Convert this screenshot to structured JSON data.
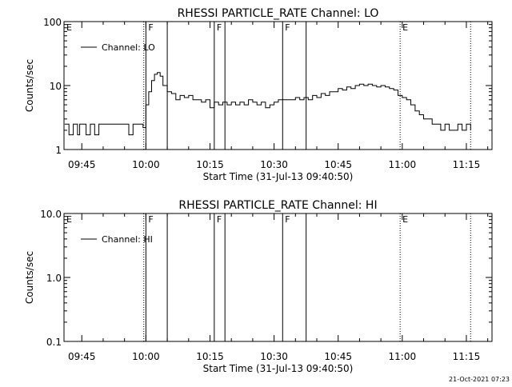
{
  "footer": {
    "timestamp": "21-Oct-2021 07:23"
  },
  "chart_data": [
    {
      "type": "line",
      "title": "RHESSI PARTICLE_RATE Channel: LO",
      "xlabel": "Start Time (31-Jul-13 09:40:50)",
      "ylabel": "Counts/sec",
      "yscale": "log",
      "ylim": [
        1,
        100
      ],
      "xlim": [
        "09:40:50",
        "11:21:00"
      ],
      "yticks": [
        "1",
        "10",
        "100"
      ],
      "xticks": [
        "09:45",
        "10:00",
        "10:15",
        "10:30",
        "10:45",
        "11:00",
        "11:15"
      ],
      "legend": {
        "label": "Channel: LO",
        "position": "top-left"
      },
      "markers": [
        {
          "time": "09:40:50",
          "label": "E",
          "style": "none"
        },
        {
          "time": "09:59:30",
          "label": "",
          "style": "dotted"
        },
        {
          "time": "10:00:00",
          "label": "F",
          "style": "solid"
        },
        {
          "time": "10:05:00",
          "label": "",
          "style": "solid"
        },
        {
          "time": "10:16:00",
          "label": "F",
          "style": "solid"
        },
        {
          "time": "10:18:30",
          "label": "",
          "style": "solid"
        },
        {
          "time": "10:32:00",
          "label": "F",
          "style": "solid"
        },
        {
          "time": "10:37:30",
          "label": "",
          "style": "solid"
        },
        {
          "time": "10:59:30",
          "label": "E",
          "style": "dotted"
        },
        {
          "time": "11:16:00",
          "label": "",
          "style": "dotted"
        }
      ],
      "series": [
        {
          "x": [
            "09:41:00",
            "09:42:00",
            "09:43:00",
            "09:44:00",
            "09:44:30",
            "09:45:00",
            "09:46:00",
            "09:47:00",
            "09:48:00",
            "09:49:00",
            "09:50:00",
            "09:51:00",
            "09:52:00",
            "09:53:00",
            "09:54:00",
            "09:55:00",
            "09:56:00",
            "09:57:00",
            "09:58:00",
            "09:58:40",
            "09:59:20",
            "10:00:00",
            "10:00:40",
            "10:01:20",
            "10:02:00",
            "10:02:40",
            "10:03:20",
            "10:04:00",
            "10:05:00",
            "10:06:00",
            "10:07:00",
            "10:08:00",
            "10:09:00",
            "10:10:00",
            "10:11:00",
            "10:12:00",
            "10:13:00",
            "10:14:00",
            "10:15:00",
            "10:16:00",
            "10:17:00",
            "10:18:00",
            "10:19:00",
            "10:20:00",
            "10:21:00",
            "10:22:00",
            "10:23:00",
            "10:24:00",
            "10:25:00",
            "10:26:00",
            "10:27:00",
            "10:28:00",
            "10:29:00",
            "10:30:00",
            "10:31:00",
            "10:32:00",
            "10:33:00",
            "10:34:00",
            "10:35:00",
            "10:36:00",
            "10:37:00",
            "10:38:00",
            "10:39:00",
            "10:40:00",
            "10:41:00",
            "10:42:00",
            "10:43:00",
            "10:44:00",
            "10:45:00",
            "10:46:00",
            "10:47:00",
            "10:48:00",
            "10:49:00",
            "10:50:00",
            "10:51:00",
            "10:52:00",
            "10:53:00",
            "10:54:00",
            "10:55:00",
            "10:56:00",
            "10:57:00",
            "10:58:00",
            "10:59:00",
            "11:00:00",
            "11:01:00",
            "11:02:00",
            "11:03:00",
            "11:04:00",
            "11:05:00",
            "11:06:00",
            "11:07:00",
            "11:08:00",
            "11:09:00",
            "11:10:00",
            "11:11:00",
            "11:12:00",
            "11:13:00",
            "11:14:00",
            "11:15:00",
            "11:16:00"
          ],
          "y": [
            2.5,
            1.7,
            2.5,
            1.7,
            2.5,
            2.5,
            1.7,
            2.5,
            1.7,
            2.5,
            2.5,
            2.5,
            2.5,
            2.5,
            2.5,
            2.5,
            1.7,
            2.5,
            2.5,
            2.5,
            2.2,
            5,
            8,
            12,
            15,
            16,
            14,
            10,
            8,
            7.5,
            6,
            7,
            6.5,
            7,
            6,
            6,
            5.5,
            6,
            4.5,
            5.5,
            5,
            5.5,
            5,
            5.5,
            5,
            5.5,
            5,
            6,
            5.5,
            5,
            5.5,
            4.5,
            5,
            5.5,
            6,
            6,
            6,
            6,
            6.5,
            6,
            6.5,
            6,
            7,
            6.5,
            7.5,
            7,
            8,
            8,
            9,
            8.5,
            9.5,
            9,
            10,
            10.5,
            10,
            10.5,
            10,
            9.5,
            10,
            9.5,
            9,
            8.5,
            7,
            6.5,
            6,
            5,
            4,
            3.5,
            3,
            3,
            2.5,
            2.5,
            2,
            2.5,
            2,
            2,
            2.5,
            2,
            2.5,
            2
          ]
        }
      ]
    },
    {
      "type": "line",
      "title": "RHESSI PARTICLE_RATE Channel: HI",
      "xlabel": "Start Time (31-Jul-13 09:40:50)",
      "ylabel": "Counts/sec",
      "yscale": "log",
      "ylim": [
        0.1,
        10
      ],
      "xlim": [
        "09:40:50",
        "11:21:00"
      ],
      "yticks": [
        "0.1",
        "1.0",
        "10.0"
      ],
      "xticks": [
        "09:45",
        "10:00",
        "10:15",
        "10:30",
        "10:45",
        "11:00",
        "11:15"
      ],
      "legend": {
        "label": "Channel: HI",
        "position": "top-left"
      },
      "markers": [
        {
          "time": "09:40:50",
          "label": "E",
          "style": "none"
        },
        {
          "time": "09:59:30",
          "label": "",
          "style": "dotted"
        },
        {
          "time": "10:00:00",
          "label": "F",
          "style": "solid"
        },
        {
          "time": "10:05:00",
          "label": "",
          "style": "solid"
        },
        {
          "time": "10:16:00",
          "label": "F",
          "style": "solid"
        },
        {
          "time": "10:18:30",
          "label": "",
          "style": "solid"
        },
        {
          "time": "10:32:00",
          "label": "F",
          "style": "solid"
        },
        {
          "time": "10:37:30",
          "label": "",
          "style": "solid"
        },
        {
          "time": "10:59:30",
          "label": "E",
          "style": "dotted"
        },
        {
          "time": "11:16:00",
          "label": "",
          "style": "dotted"
        }
      ],
      "series": []
    }
  ]
}
